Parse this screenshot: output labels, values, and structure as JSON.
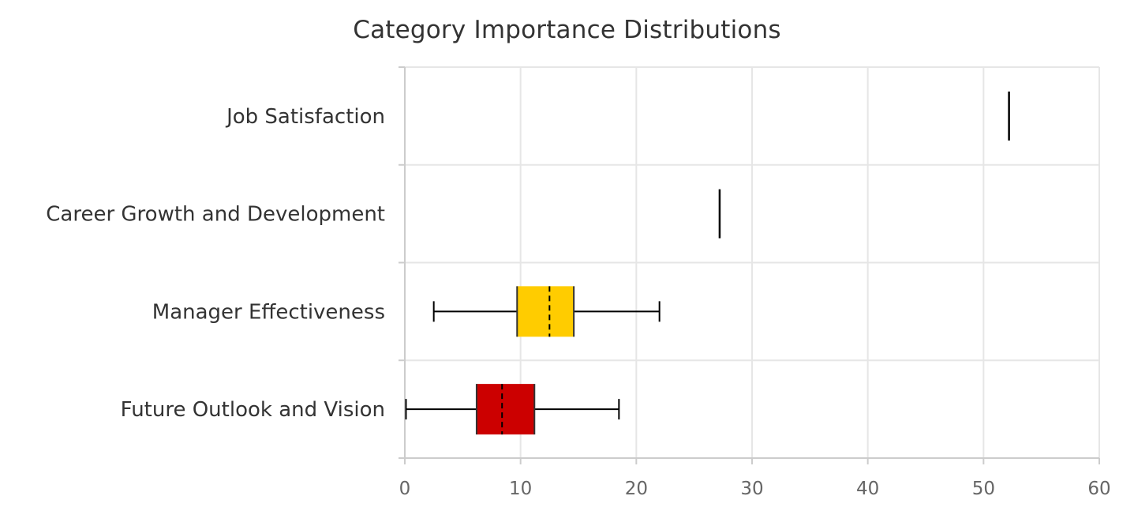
{
  "chart_data": {
    "type": "box",
    "title": "Category Importance Distributions",
    "xlim": [
      0,
      60
    ],
    "x_ticks": [
      0,
      10,
      20,
      30,
      40,
      50,
      60
    ],
    "orientation": "horizontal",
    "grid": true,
    "categories": [
      {
        "name": "Job Satisfaction",
        "min": 52.2,
        "q1": 52.2,
        "median": 52.2,
        "q3": 52.2,
        "max": 52.2,
        "color": "#000000"
      },
      {
        "name": "Career Growth and Development",
        "min": 27.2,
        "q1": 27.2,
        "median": 27.2,
        "q3": 27.2,
        "max": 27.2,
        "color": "#000000"
      },
      {
        "name": "Manager Effectiveness",
        "min": 2.5,
        "q1": 9.7,
        "median": 12.5,
        "q3": 14.6,
        "max": 22.0,
        "color": "#FFCC00"
      },
      {
        "name": "Future Outlook and Vision",
        "min": 0.1,
        "q1": 6.2,
        "median": 8.4,
        "q3": 11.2,
        "max": 18.5,
        "color": "#CC0000"
      }
    ]
  }
}
